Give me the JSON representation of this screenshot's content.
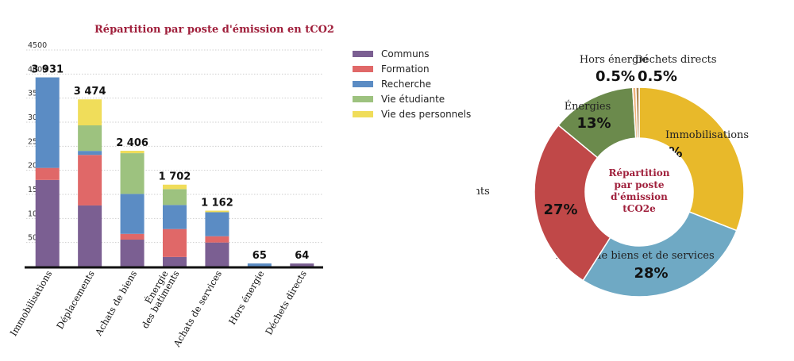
{
  "chart_data": [
    {
      "type": "bar",
      "stacked": true,
      "title": "Répartition par poste d'émission en tCO2",
      "categories": [
        "Immobilisations",
        "Déplacements",
        "Achats de biens",
        "Énergie des batiments",
        "Achats de services",
        "Hors énergie",
        "Déchets directs"
      ],
      "category_labels": [
        [
          "Immobilisations"
        ],
        [
          "Déplacements"
        ],
        [
          "Achats de biens"
        ],
        [
          "Énergie",
          "des batiments"
        ],
        [
          "Achats de services"
        ],
        [
          "Hors énergie"
        ],
        [
          "Déchets directs"
        ]
      ],
      "totals": [
        3931,
        3474,
        2406,
        1702,
        1162,
        65,
        64
      ],
      "total_labels": [
        "3 931",
        "3 474",
        "2 406",
        "1 702",
        "1 162",
        "65",
        "64"
      ],
      "series": [
        {
          "name": "Communs",
          "color": "#7b5f92",
          "values": [
            1800,
            1270,
            560,
            200,
            500,
            0,
            64
          ]
        },
        {
          "name": "Formation",
          "color": "#e06868",
          "values": [
            250,
            1050,
            120,
            580,
            130,
            0,
            0
          ]
        },
        {
          "name": "Recherche",
          "color": "#5b8cc4",
          "values": [
            1881,
            84,
            830,
            500,
            500,
            65,
            0
          ]
        },
        {
          "name": "Vie étudiante",
          "color": "#9dc27f",
          "values": [
            0,
            530,
            846,
            330,
            0,
            0,
            0
          ]
        },
        {
          "name": "Vie des personnels",
          "color": "#f0dd5a",
          "values": [
            0,
            540,
            50,
            92,
            32,
            0,
            0
          ]
        }
      ],
      "yticks": [
        500,
        1000,
        1500,
        2000,
        2500,
        3000,
        3500,
        4000,
        4500
      ],
      "ylim": [
        0,
        4500
      ],
      "grid": true,
      "legend": "right"
    },
    {
      "type": "pie",
      "donut": true,
      "center_label": [
        "Répartition",
        "par poste",
        "d'émission",
        "tCO2e"
      ],
      "slices": [
        {
          "label": "Immobilisations",
          "value": 31,
          "pct": "31%",
          "color": "#e8b92a"
        },
        {
          "label": "Achats de biens et de services",
          "value": 28,
          "pct": "28%",
          "color": "#6fa9c4"
        },
        {
          "label": "Déplacements",
          "value": 27,
          "pct": "27%",
          "color": "#c04848"
        },
        {
          "label": "Énergies",
          "value": 13,
          "pct": "13%",
          "color": "#6b8a4c"
        },
        {
          "label": "Hors énergie",
          "value": 0.5,
          "pct": "0.5%",
          "color": "#f0b27a"
        },
        {
          "label": "Déchets directs",
          "value": 0.5,
          "pct": "0.5%",
          "color": "#b08850"
        }
      ]
    }
  ]
}
